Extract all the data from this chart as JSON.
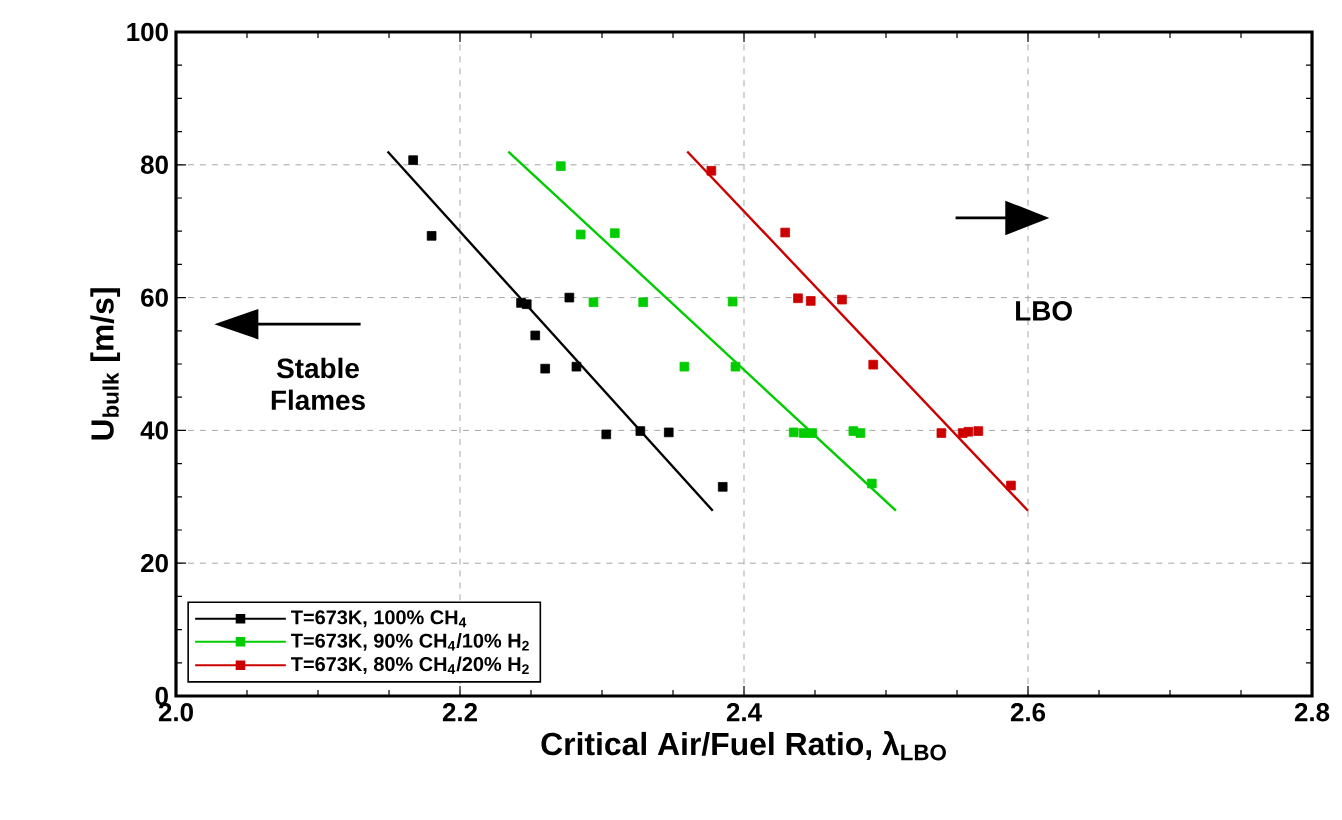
{
  "chart_data": {
    "type": "scatter",
    "xlabel": "Critical Air/Fuel Ratio, λ$_{LBO}$",
    "ylabel": "U$_{bulk}$ [m/s]",
    "xlim": [
      2.0,
      2.8
    ],
    "ylim": [
      0,
      100
    ],
    "xticks": [
      {
        "value": 2.0,
        "label": "2.0"
      },
      {
        "value": 2.2,
        "label": "2.2"
      },
      {
        "value": 2.4,
        "label": "2.4"
      },
      {
        "value": 2.6,
        "label": "2.6"
      },
      {
        "value": 2.8,
        "label": "2.8"
      }
    ],
    "yticks": [
      0,
      20,
      40,
      60,
      80,
      100
    ],
    "grid": true,
    "legend": "bottom left",
    "series": [
      {
        "name": "T=673K, 100% CH$_{4}$",
        "color": "#000000",
        "marker": "square",
        "x": [
          2.167,
          2.18,
          2.243,
          2.247,
          2.253,
          2.26,
          2.277,
          2.282,
          2.303,
          2.327,
          2.347,
          2.385
        ],
        "values": [
          80.7,
          69.3,
          59.2,
          59.0,
          54.3,
          49.3,
          60.0,
          49.6,
          39.4,
          39.9,
          39.7,
          31.5
        ]
      },
      {
        "name": "T=673K, 90% CH$_{4}$/10% H$_{2}$",
        "color": "#00cc00",
        "marker": "square",
        "x": [
          2.271,
          2.285,
          2.309,
          2.294,
          2.329,
          2.392,
          2.358,
          2.394,
          2.435,
          2.442,
          2.448,
          2.477,
          2.482,
          2.49
        ],
        "values": [
          79.8,
          69.5,
          69.7,
          59.3,
          59.3,
          59.4,
          49.6,
          49.6,
          39.7,
          39.6,
          39.6,
          39.9,
          39.6,
          32.0
        ]
      },
      {
        "name": "T=673K, 80% CH$_{4}$/20% H$_{2}$",
        "color": "#cc0000",
        "marker": "square",
        "x": [
          2.377,
          2.429,
          2.438,
          2.447,
          2.469,
          2.491,
          2.539,
          2.554,
          2.558,
          2.565,
          2.588
        ],
        "values": [
          79.1,
          69.8,
          59.9,
          59.5,
          59.7,
          49.9,
          39.6,
          39.6,
          39.8,
          39.9,
          31.7
        ]
      },
      {
        "type": "line",
        "color": "#000000",
        "x": [
          2.149,
          2.378
        ],
        "values": [
          82,
          27.9
        ]
      },
      {
        "type": "line",
        "color": "#00cc00",
        "x": [
          2.234,
          2.507
        ],
        "values": [
          82,
          27.9
        ]
      },
      {
        "type": "line",
        "color": "#cc0000",
        "x": [
          2.36,
          2.6
        ],
        "values": [
          82,
          27.9
        ]
      }
    ],
    "annotations": [
      "Stable Flames",
      "LBO"
    ]
  }
}
